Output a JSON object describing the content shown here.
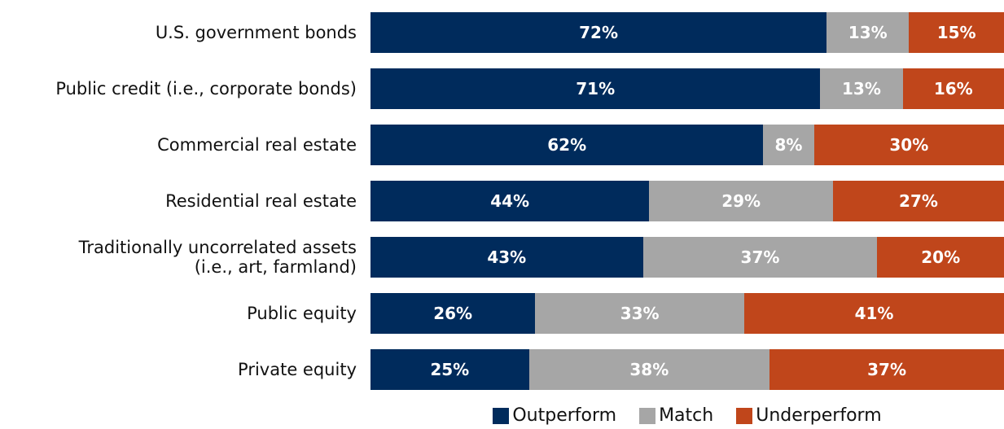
{
  "chart_data": {
    "type": "stacked-bar-horizontal",
    "categories": [
      "U.S. government bonds",
      "Public credit (i.e., corporate bonds)",
      "Commercial real estate",
      "Residential real estate",
      "Traditionally uncorrelated assets\n(i.e., art, farmland)",
      "Public equity",
      "Private equity"
    ],
    "series": [
      {
        "name": "Outperform",
        "color": "#002b5c",
        "values": [
          72,
          71,
          62,
          44,
          43,
          26,
          25
        ],
        "value_labels": [
          "72%",
          "71%",
          "62%",
          "44%",
          "43%",
          "26%",
          "25%"
        ]
      },
      {
        "name": "Match",
        "color": "#a6a6a6",
        "values": [
          13,
          13,
          8,
          29,
          37,
          33,
          38
        ],
        "value_labels": [
          "13%",
          "13%",
          "8%",
          "29%",
          "37%",
          "33%",
          "38%"
        ]
      },
      {
        "name": "Underperform",
        "color": "#c0461b",
        "values": [
          15,
          16,
          30,
          27,
          20,
          41,
          37
        ],
        "value_labels": [
          "15%",
          "16%",
          "30%",
          "27%",
          "20%",
          "41%",
          "37%"
        ]
      }
    ],
    "xlim": [
      0,
      100
    ],
    "legend": "bottom"
  }
}
